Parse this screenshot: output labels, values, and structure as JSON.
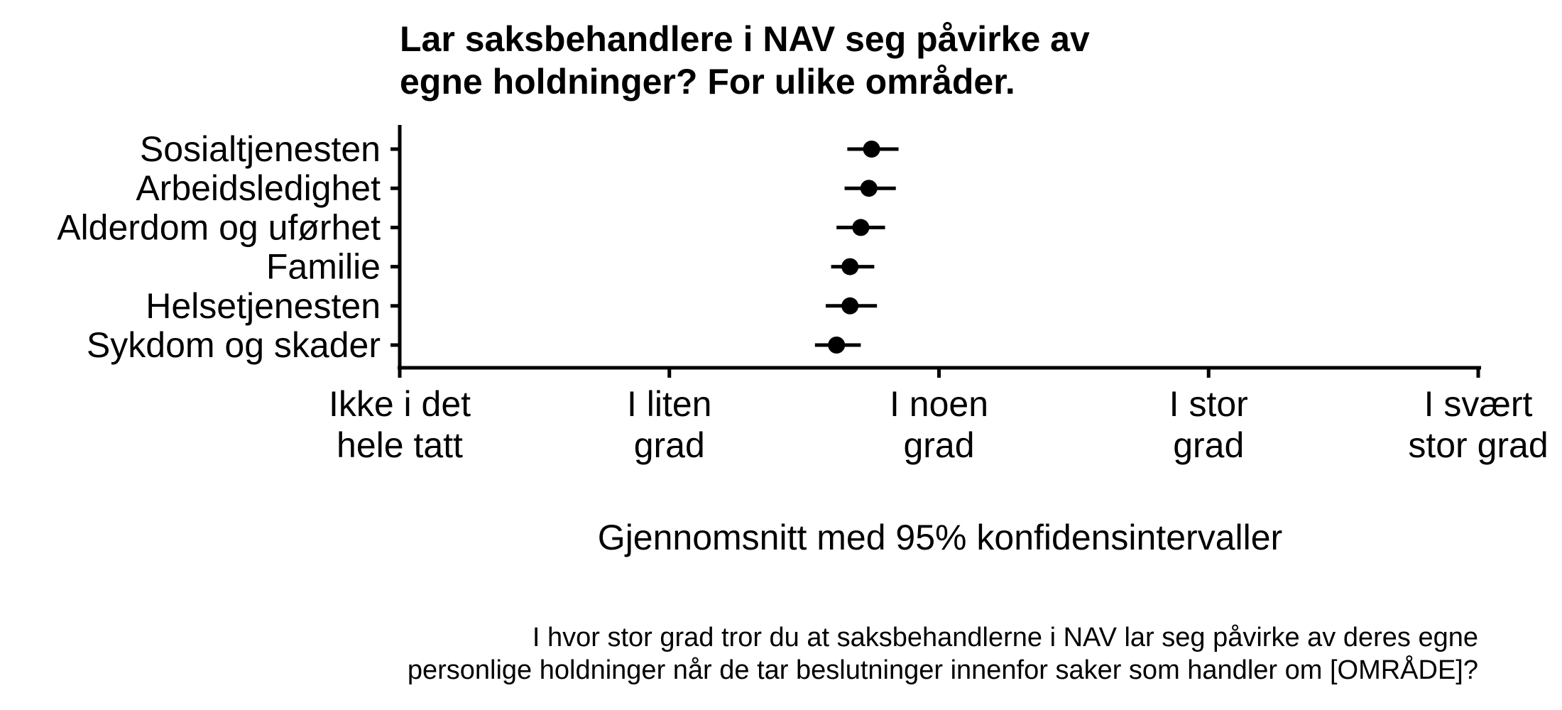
{
  "chart_data": {
    "type": "scatter",
    "title": [
      "Lar saksbehandlere i NAV seg påvirke av",
      "egne holdninger? For ulike områder."
    ],
    "xlabel": "Gjennomsnitt med 95% konfidensintervaller",
    "caption": [
      "I hvor stor grad tror du at saksbehandlerne i NAV lar seg påvirke av deres egne",
      "personlige holdninger når de tar beslutninger innenfor saker som handler om [OMRÅDE]?"
    ],
    "xlim": [
      1,
      5
    ],
    "xticks": [
      {
        "value": 1,
        "label": [
          "Ikke i det",
          "hele tatt"
        ]
      },
      {
        "value": 2,
        "label": [
          "I liten",
          "grad"
        ]
      },
      {
        "value": 3,
        "label": [
          "I noen",
          "grad"
        ]
      },
      {
        "value": 4,
        "label": [
          "I stor",
          "grad"
        ]
      },
      {
        "value": 5,
        "label": [
          "I svært",
          "stor grad"
        ]
      }
    ],
    "categories": [
      "Sosialtjenesten",
      "Arbeidsledighet",
      "Alderdom og uførhet",
      "Familie",
      "Helsetjenesten",
      "Sykdom og skader"
    ],
    "mean": [
      2.75,
      2.74,
      2.71,
      2.67,
      2.67,
      2.62
    ],
    "ci_low": [
      2.66,
      2.65,
      2.62,
      2.6,
      2.58,
      2.54
    ],
    "ci_high": [
      2.85,
      2.84,
      2.8,
      2.76,
      2.77,
      2.71
    ],
    "grid": false,
    "legend": "none"
  }
}
